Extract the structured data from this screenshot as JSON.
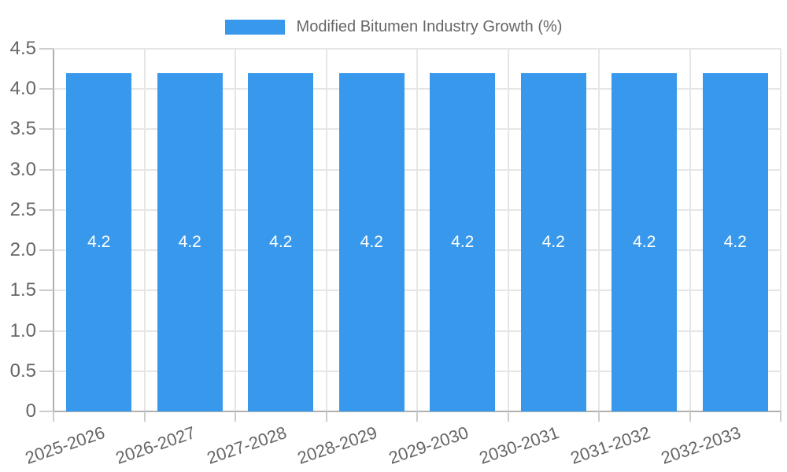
{
  "legend": {
    "label": "Modified Bitumen Industry Growth (%)"
  },
  "chart_data": {
    "type": "bar",
    "title": "Modified Bitumen Industry Growth (%)",
    "categories": [
      "2025-2026",
      "2026-2027",
      "2027-2028",
      "2028-2029",
      "2029-2030",
      "2030-2031",
      "2031-2032",
      "2032-2033"
    ],
    "values": [
      4.2,
      4.2,
      4.2,
      4.2,
      4.2,
      4.2,
      4.2,
      4.2
    ],
    "bar_labels": [
      "4.2",
      "4.2",
      "4.2",
      "4.2",
      "4.2",
      "4.2",
      "4.2",
      "4.2"
    ],
    "xlabel": "",
    "ylabel": "",
    "ylim": [
      0,
      4.5
    ],
    "ytick_step": 0.5,
    "ytick_labels": [
      "0",
      "0.5",
      "1.0",
      "1.5",
      "2.0",
      "2.5",
      "3.0",
      "3.5",
      "4.0",
      "4.5"
    ],
    "grid": true,
    "legend_position": "top-center",
    "colors": {
      "bar": "#3899EC",
      "grid": "#e6e6e6",
      "axis": "#b0b0b0",
      "tick": "#cccccc",
      "text": "#666666",
      "value_text": "#ffffff"
    }
  }
}
